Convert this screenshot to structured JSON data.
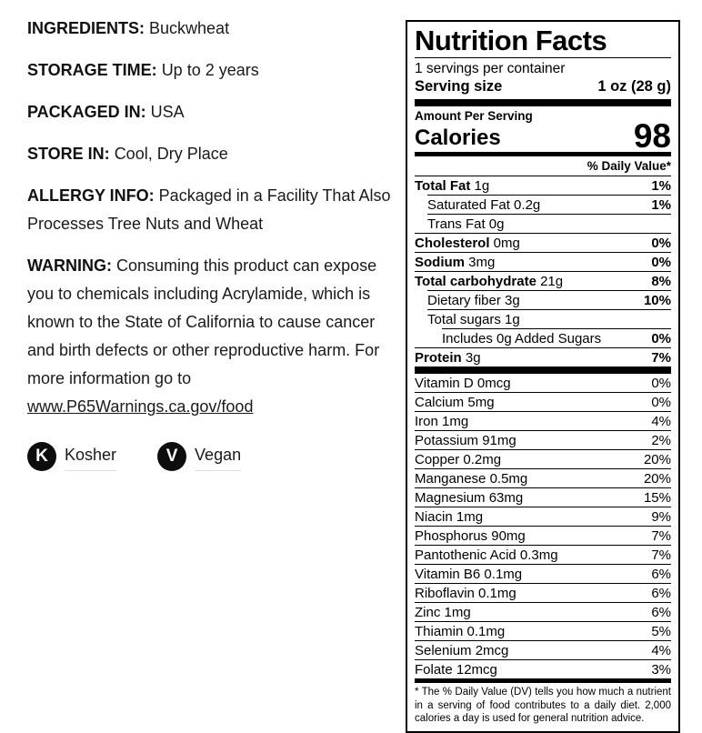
{
  "info": {
    "paragraphs": [
      {
        "label": "INGREDIENTS:",
        "text": "Buckwheat"
      },
      {
        "label": "STORAGE TIME:",
        "text": "Up to 2 years"
      },
      {
        "label": "PACKAGED IN:",
        "text": "USA"
      },
      {
        "label": "STORE IN:",
        "text": "Cool, Dry Place"
      },
      {
        "label": "ALLERGY INFO:",
        "text": "Packaged in a Facility That Also Processes Tree Nuts and Wheat"
      },
      {
        "label": "WARNING:",
        "text": "Consuming this product can expose you to chemicals including Acrylamide, which is known to the State of California to cause cancer and birth defects or other reproductive harm. For more information go to",
        "link": "www.P65Warnings.ca.gov/food"
      }
    ],
    "badges": [
      {
        "letter": "K",
        "label": "Kosher"
      },
      {
        "letter": "V",
        "label": "Vegan"
      }
    ]
  },
  "nutrition": {
    "title": "Nutrition Facts",
    "servings_per_container": "1 servings per container",
    "serving_size_label": "Serving size",
    "serving_size_value": "1 oz (28 g)",
    "amount_per_serving": "Amount Per Serving",
    "calories_label": "Calories",
    "calories_value": "98",
    "daily_value_header": "% Daily Value*",
    "main_rows": [
      {
        "name": "Total Fat",
        "amount": "1g",
        "dv": "1%",
        "bold": true,
        "indent": 0
      },
      {
        "name": "Saturated Fat",
        "amount": "0.2g",
        "dv": "1%",
        "bold": false,
        "indent": 1
      },
      {
        "name": "Trans Fat",
        "amount": "0g",
        "dv": "",
        "bold": false,
        "indent": 1
      },
      {
        "name": "Cholesterol",
        "amount": "0mg",
        "dv": "0%",
        "bold": true,
        "indent": 0
      },
      {
        "name": "Sodium",
        "amount": "3mg",
        "dv": "0%",
        "bold": true,
        "indent": 0
      },
      {
        "name": "Total carbohydrate",
        "amount": "21g",
        "dv": "8%",
        "bold": true,
        "indent": 0
      },
      {
        "name": "Dietary fiber",
        "amount": "3g",
        "dv": "10%",
        "bold": false,
        "indent": 1
      },
      {
        "name": "Total sugars",
        "amount": "1g",
        "dv": "",
        "bold": false,
        "indent": 1
      },
      {
        "name": "Includes 0g Added Sugars",
        "amount": "",
        "dv": "0%",
        "bold": false,
        "indent": 2
      },
      {
        "name": "Protein",
        "amount": "3g",
        "dv": "7%",
        "bold": true,
        "indent": 0
      }
    ],
    "vitamin_rows": [
      {
        "name": "Vitamin D",
        "amount": "0mcg",
        "dv": "0%"
      },
      {
        "name": "Calcium",
        "amount": "5mg",
        "dv": "0%"
      },
      {
        "name": "Iron",
        "amount": "1mg",
        "dv": "4%"
      },
      {
        "name": "Potassium",
        "amount": "91mg",
        "dv": "2%"
      },
      {
        "name": "Copper",
        "amount": "0.2mg",
        "dv": "20%"
      },
      {
        "name": "Manganese",
        "amount": "0.5mg",
        "dv": "20%"
      },
      {
        "name": "Magnesium",
        "amount": "63mg",
        "dv": "15%"
      },
      {
        "name": "Niacin",
        "amount": "1mg",
        "dv": "9%"
      },
      {
        "name": "Phosphorus",
        "amount": "90mg",
        "dv": "7%"
      },
      {
        "name": "Pantothenic Acid",
        "amount": "0.3mg",
        "dv": "7%"
      },
      {
        "name": "Vitamin B6",
        "amount": "0.1mg",
        "dv": "6%"
      },
      {
        "name": "Riboflavin",
        "amount": "0.1mg",
        "dv": "6%"
      },
      {
        "name": "Zinc",
        "amount": "1mg",
        "dv": "6%"
      },
      {
        "name": "Thiamin",
        "amount": "0.1mg",
        "dv": "5%"
      },
      {
        "name": "Selenium",
        "amount": "2mcg",
        "dv": "4%"
      },
      {
        "name": "Folate",
        "amount": "12mcg",
        "dv": "3%"
      }
    ],
    "footnote": "* The % Daily Value (DV) tells you how much a nutrient in a serving of food contributes to a daily diet. 2,000 calories a day is used for general nutrition advice.",
    "colors": {
      "text": "#000000",
      "left_text": "#1a1a1a",
      "underline_gray": "#dcdcdc"
    }
  }
}
